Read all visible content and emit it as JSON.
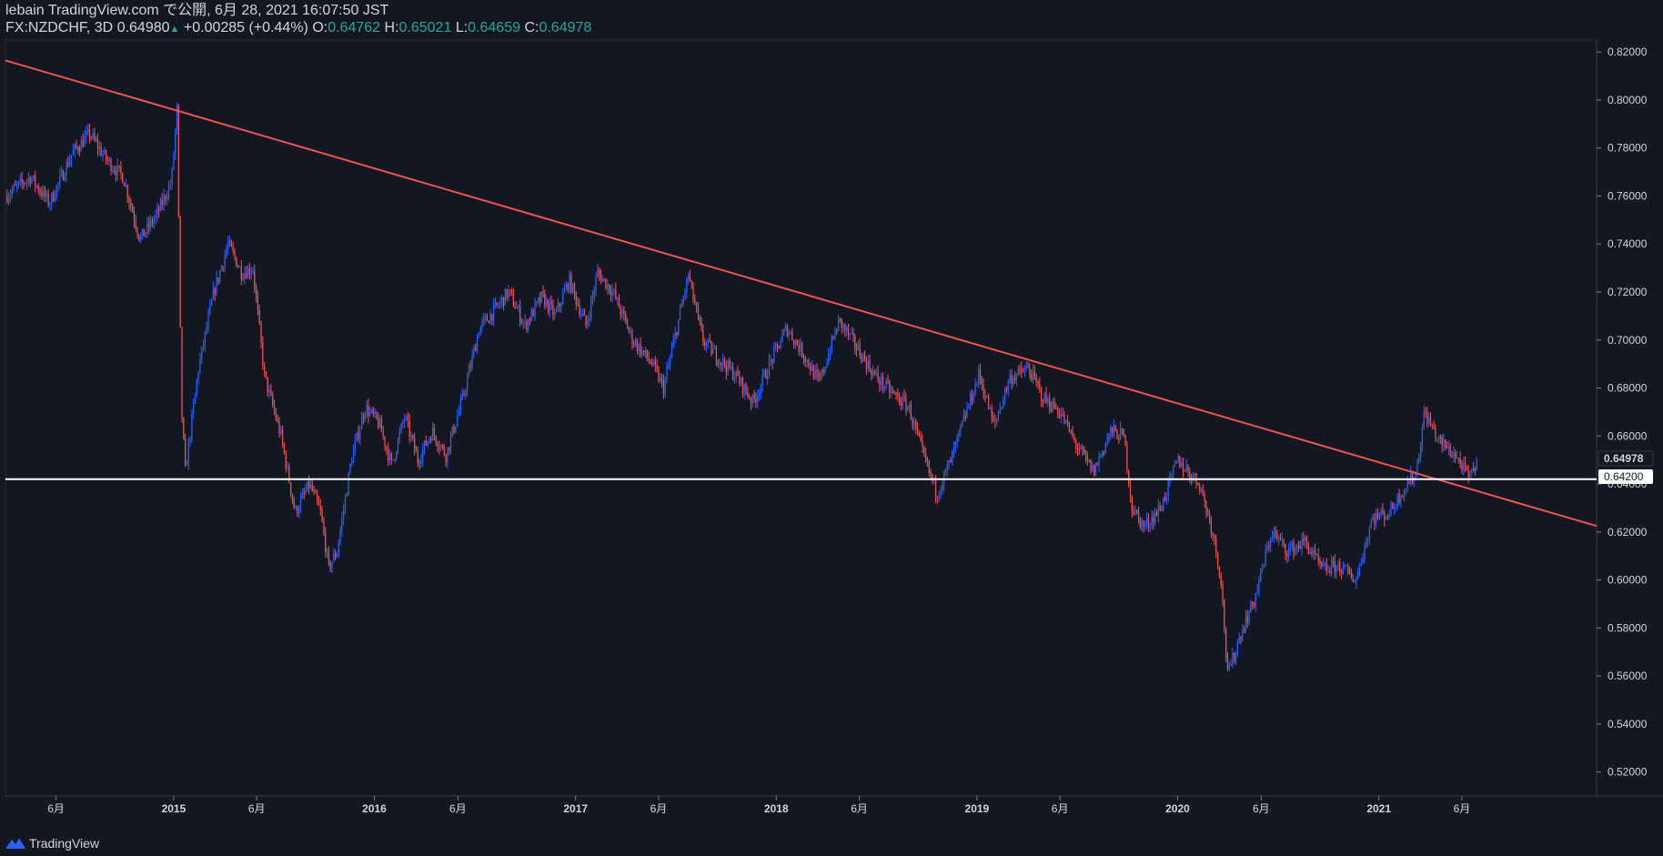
{
  "header": {
    "published": "lebain TradingView.com で公開, 6月 28, 2021 16:07:50 JST",
    "symbol": "FX:NZDCHF, 3D",
    "last": "0.64980",
    "change_arrow": "▲",
    "change": "+0.00285 (+0.44%)",
    "o_label": "O:",
    "o_value": "0.64762",
    "h_label": "H:",
    "h_value": "0.65021",
    "l_label": "L:",
    "l_value": "0.64659",
    "c_label": "C:",
    "c_value": "0.64978"
  },
  "footer": {
    "brand": "TradingView",
    "logo_icon": "tradingview-logo-icon"
  },
  "colors": {
    "background": "#131722",
    "up": "#2962ff",
    "down": "#ef5350",
    "trendline": "#ef5350",
    "level": "#ffffff",
    "grid": "#1e222d",
    "text": "#d1d4dc",
    "accent": "#26a69a"
  },
  "chart_data": {
    "type": "line",
    "title": "",
    "xlabel": "",
    "ylabel": "",
    "ylim": [
      0.51,
      0.825
    ],
    "xlim": [
      "2014-03-01",
      "2022-02-01"
    ],
    "price_labels": {
      "last": "0.64978",
      "level": "0.64200"
    },
    "y_ticks": [
      "0.82000",
      "0.80000",
      "0.78000",
      "0.76000",
      "0.74000",
      "0.72000",
      "0.70000",
      "0.68000",
      "0.66000",
      "0.64000",
      "0.62000",
      "0.60000",
      "0.58000",
      "0.56000",
      "0.54000",
      "0.52000"
    ],
    "y_tick_values": [
      0.82,
      0.8,
      0.78,
      0.76,
      0.74,
      0.72,
      0.7,
      0.68,
      0.66,
      0.64,
      0.62,
      0.6,
      0.58,
      0.56,
      0.54,
      0.52
    ],
    "x_ticks": [
      {
        "date": "2014-06-01",
        "label": "6月"
      },
      {
        "date": "2015-01-01",
        "label": "2015"
      },
      {
        "date": "2015-06-01",
        "label": "6月"
      },
      {
        "date": "2016-01-01",
        "label": "2016"
      },
      {
        "date": "2016-06-01",
        "label": "6月"
      },
      {
        "date": "2017-01-01",
        "label": "2017"
      },
      {
        "date": "2017-06-01",
        "label": "6月"
      },
      {
        "date": "2018-01-01",
        "label": "2018"
      },
      {
        "date": "2018-06-01",
        "label": "6月"
      },
      {
        "date": "2019-01-01",
        "label": "2019"
      },
      {
        "date": "2019-06-01",
        "label": "6月"
      },
      {
        "date": "2020-01-01",
        "label": "2020"
      },
      {
        "date": "2020-06-01",
        "label": "6月"
      },
      {
        "date": "2021-01-01",
        "label": "2021"
      },
      {
        "date": "2021-06-01",
        "label": "6月"
      }
    ],
    "series": [
      {
        "values": [
          [
            "2014-03-01",
            0.76
          ],
          [
            "2014-04-15",
            0.768
          ],
          [
            "2014-05-20",
            0.757
          ],
          [
            "2014-07-01",
            0.778
          ],
          [
            "2014-08-01",
            0.786
          ],
          [
            "2014-09-01",
            0.775
          ],
          [
            "2014-10-01",
            0.768
          ],
          [
            "2014-11-01",
            0.742
          ],
          [
            "2014-12-01",
            0.752
          ],
          [
            "2014-12-28",
            0.766
          ],
          [
            "2015-01-07",
            0.796
          ],
          [
            "2015-01-15",
            0.672
          ],
          [
            "2015-01-22",
            0.645
          ],
          [
            "2015-02-15",
            0.688
          ],
          [
            "2015-03-15",
            0.72
          ],
          [
            "2015-04-10",
            0.74
          ],
          [
            "2015-05-05",
            0.728
          ],
          [
            "2015-05-25",
            0.73
          ],
          [
            "2015-06-15",
            0.685
          ],
          [
            "2015-07-15",
            0.66
          ],
          [
            "2015-08-10",
            0.628
          ],
          [
            "2015-09-05",
            0.64
          ],
          [
            "2015-09-25",
            0.628
          ],
          [
            "2015-10-10",
            0.605
          ],
          [
            "2015-10-25",
            0.612
          ],
          [
            "2015-11-20",
            0.65
          ],
          [
            "2015-12-15",
            0.672
          ],
          [
            "2016-01-10",
            0.665
          ],
          [
            "2016-02-01",
            0.648
          ],
          [
            "2016-02-25",
            0.668
          ],
          [
            "2016-03-20",
            0.65
          ],
          [
            "2016-04-15",
            0.662
          ],
          [
            "2016-05-10",
            0.652
          ],
          [
            "2016-06-10",
            0.676
          ],
          [
            "2016-07-10",
            0.705
          ],
          [
            "2016-08-05",
            0.712
          ],
          [
            "2016-09-01",
            0.72
          ],
          [
            "2016-10-01",
            0.706
          ],
          [
            "2016-11-01",
            0.718
          ],
          [
            "2016-11-25",
            0.71
          ],
          [
            "2016-12-20",
            0.725
          ],
          [
            "2017-01-20",
            0.706
          ],
          [
            "2017-02-10",
            0.728
          ],
          [
            "2017-03-10",
            0.72
          ],
          [
            "2017-04-15",
            0.7
          ],
          [
            "2017-05-20",
            0.69
          ],
          [
            "2017-06-10",
            0.68
          ],
          [
            "2017-07-05",
            0.706
          ],
          [
            "2017-07-25",
            0.727
          ],
          [
            "2017-08-20",
            0.7
          ],
          [
            "2017-09-20",
            0.692
          ],
          [
            "2017-10-20",
            0.685
          ],
          [
            "2017-11-20",
            0.674
          ],
          [
            "2017-12-20",
            0.69
          ],
          [
            "2018-01-20",
            0.705
          ],
          [
            "2018-02-20",
            0.694
          ],
          [
            "2018-03-20",
            0.682
          ],
          [
            "2018-04-25",
            0.708
          ],
          [
            "2018-05-30",
            0.696
          ],
          [
            "2018-06-30",
            0.685
          ],
          [
            "2018-07-30",
            0.678
          ],
          [
            "2018-08-30",
            0.672
          ],
          [
            "2018-09-25",
            0.652
          ],
          [
            "2018-10-20",
            0.636
          ],
          [
            "2018-11-15",
            0.65
          ],
          [
            "2018-12-10",
            0.668
          ],
          [
            "2019-01-05",
            0.686
          ],
          [
            "2019-02-01",
            0.664
          ],
          [
            "2019-03-01",
            0.684
          ],
          [
            "2019-04-05",
            0.688
          ],
          [
            "2019-05-01",
            0.676
          ],
          [
            "2019-06-01",
            0.67
          ],
          [
            "2019-07-01",
            0.656
          ],
          [
            "2019-08-01",
            0.645
          ],
          [
            "2019-09-01",
            0.662
          ],
          [
            "2019-09-25",
            0.66
          ],
          [
            "2019-10-10",
            0.63
          ],
          [
            "2019-11-01",
            0.622
          ],
          [
            "2019-12-01",
            0.63
          ],
          [
            "2020-01-01",
            0.65
          ],
          [
            "2020-02-10",
            0.64
          ],
          [
            "2020-03-05",
            0.62
          ],
          [
            "2020-03-20",
            0.6
          ],
          [
            "2020-04-01",
            0.56
          ],
          [
            "2020-04-25",
            0.578
          ],
          [
            "2020-05-20",
            0.592
          ],
          [
            "2020-06-20",
            0.62
          ],
          [
            "2020-07-20",
            0.612
          ],
          [
            "2020-08-20",
            0.616
          ],
          [
            "2020-09-20",
            0.604
          ],
          [
            "2020-10-20",
            0.606
          ],
          [
            "2020-11-20",
            0.6
          ],
          [
            "2020-12-20",
            0.626
          ],
          [
            "2021-01-20",
            0.628
          ],
          [
            "2021-02-15",
            0.638
          ],
          [
            "2021-03-10",
            0.645
          ],
          [
            "2021-03-25",
            0.67
          ],
          [
            "2021-04-20",
            0.658
          ],
          [
            "2021-05-20",
            0.652
          ],
          [
            "2021-06-15",
            0.642
          ],
          [
            "2021-06-28",
            0.6498
          ]
        ]
      }
    ],
    "trendline": {
      "start": [
        "2014-03-01",
        0.8165
      ],
      "end": [
        "2022-02-01",
        0.6225
      ]
    },
    "horizontal_level": 0.642
  }
}
